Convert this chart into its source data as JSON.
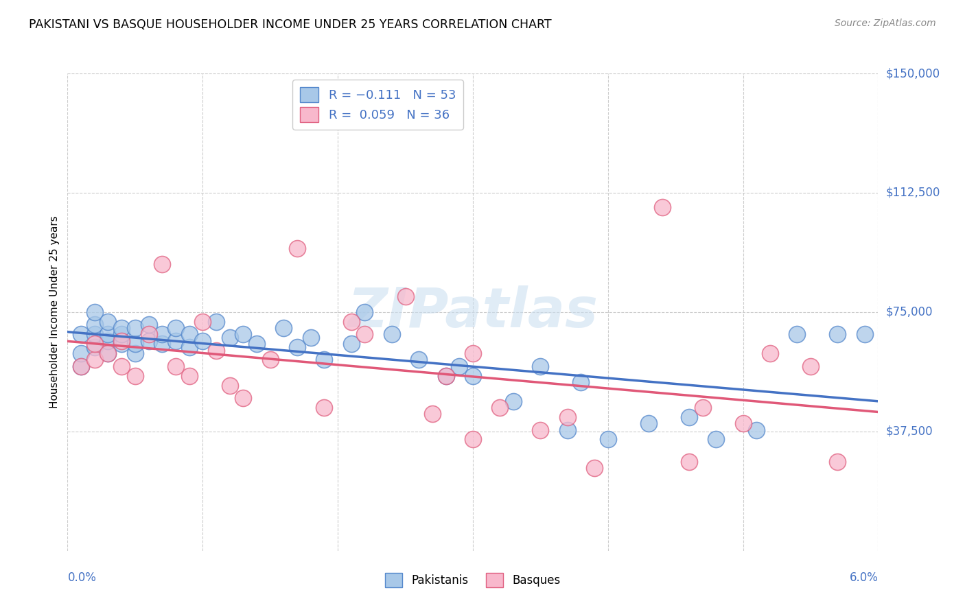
{
  "title": "PAKISTANI VS BASQUE HOUSEHOLDER INCOME UNDER 25 YEARS CORRELATION CHART",
  "source": "Source: ZipAtlas.com",
  "ylabel": "Householder Income Under 25 years",
  "xmin": 0.0,
  "xmax": 0.06,
  "ymin": 0,
  "ymax": 150000,
  "yticks": [
    37500,
    75000,
    112500,
    150000
  ],
  "ytick_labels": [
    "$37,500",
    "$75,000",
    "$112,500",
    "$150,000"
  ],
  "xtick_positions": [
    0.0,
    0.01,
    0.02,
    0.03,
    0.04,
    0.05,
    0.06
  ],
  "watermark": "ZIPatlas",
  "pakistani_color": "#a8c8e8",
  "pakistani_edge_color": "#5588cc",
  "basque_color": "#f8b8cc",
  "basque_edge_color": "#e06080",
  "pakistani_line_color": "#4472c4",
  "basque_line_color": "#e05878",
  "pakistani_x": [
    0.001,
    0.001,
    0.001,
    0.002,
    0.002,
    0.002,
    0.002,
    0.003,
    0.003,
    0.003,
    0.003,
    0.004,
    0.004,
    0.004,
    0.005,
    0.005,
    0.005,
    0.006,
    0.006,
    0.007,
    0.007,
    0.008,
    0.008,
    0.009,
    0.009,
    0.01,
    0.011,
    0.012,
    0.013,
    0.014,
    0.016,
    0.017,
    0.018,
    0.019,
    0.021,
    0.022,
    0.024,
    0.026,
    0.028,
    0.029,
    0.03,
    0.033,
    0.035,
    0.037,
    0.038,
    0.04,
    0.043,
    0.046,
    0.048,
    0.051,
    0.054,
    0.057,
    0.059
  ],
  "pakistani_y": [
    58000,
    62000,
    68000,
    64000,
    68000,
    71000,
    75000,
    62000,
    66000,
    68000,
    72000,
    65000,
    68000,
    70000,
    62000,
    65000,
    70000,
    66000,
    71000,
    65000,
    68000,
    66000,
    70000,
    64000,
    68000,
    66000,
    72000,
    67000,
    68000,
    65000,
    70000,
    64000,
    67000,
    60000,
    65000,
    75000,
    68000,
    60000,
    55000,
    58000,
    55000,
    47000,
    58000,
    38000,
    53000,
    35000,
    40000,
    42000,
    35000,
    38000,
    68000,
    68000,
    68000
  ],
  "basque_x": [
    0.001,
    0.002,
    0.002,
    0.003,
    0.004,
    0.004,
    0.005,
    0.006,
    0.007,
    0.008,
    0.009,
    0.01,
    0.011,
    0.012,
    0.013,
    0.015,
    0.017,
    0.019,
    0.021,
    0.022,
    0.025,
    0.027,
    0.028,
    0.03,
    0.032,
    0.035,
    0.037,
    0.039,
    0.044,
    0.047,
    0.05,
    0.052,
    0.055,
    0.057,
    0.03,
    0.046
  ],
  "basque_y": [
    58000,
    60000,
    65000,
    62000,
    58000,
    66000,
    55000,
    68000,
    90000,
    58000,
    55000,
    72000,
    63000,
    52000,
    48000,
    60000,
    95000,
    45000,
    72000,
    68000,
    80000,
    43000,
    55000,
    35000,
    45000,
    38000,
    42000,
    26000,
    108000,
    45000,
    40000,
    62000,
    58000,
    28000,
    62000,
    28000
  ]
}
